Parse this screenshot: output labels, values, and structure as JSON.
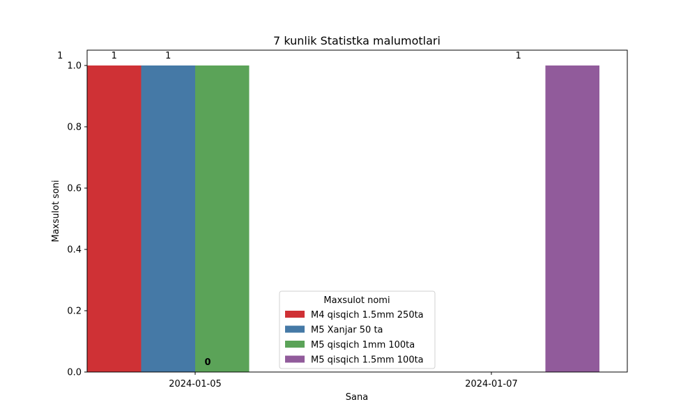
{
  "chart_data": {
    "type": "bar",
    "title": "7 kunlik Statistka malumotlari",
    "xlabel": "Sana",
    "ylabel": "Maxsulot soni",
    "categories": [
      "2024-01-05",
      "2024-01-07"
    ],
    "ylim": [
      0,
      1.05
    ],
    "yticks": [
      "0.0",
      "0.2",
      "0.4",
      "0.6",
      "0.8",
      "1.0"
    ],
    "grid": false,
    "legend": {
      "title": "Maxsulot nomi",
      "placement": "lower-center"
    },
    "series": [
      {
        "name": "M4 qisqich 1.5mm 250ta",
        "color": "#cf3135",
        "values": [
          1,
          0
        ]
      },
      {
        "name": "M5 Xanjar 50 ta",
        "color": "#4579a6",
        "values": [
          1,
          0
        ]
      },
      {
        "name": "M5 qisqich 1mm 100ta",
        "color": "#5ba358",
        "values": [
          1,
          0
        ]
      },
      {
        "name": "M5 qisqich 1.5mm 100ta",
        "color": "#915b9b",
        "values": [
          0,
          1
        ]
      }
    ],
    "bar_labels": {
      "top": [
        {
          "text": "1",
          "category": 0,
          "series": -1
        },
        {
          "text": "1",
          "category": 0,
          "series": 0
        },
        {
          "text": "1",
          "category": 0,
          "series": 1
        },
        {
          "text": "1",
          "category": 1,
          "series": 2
        }
      ],
      "zero": {
        "text": "0",
        "category": 0,
        "series": 1.5
      }
    }
  }
}
